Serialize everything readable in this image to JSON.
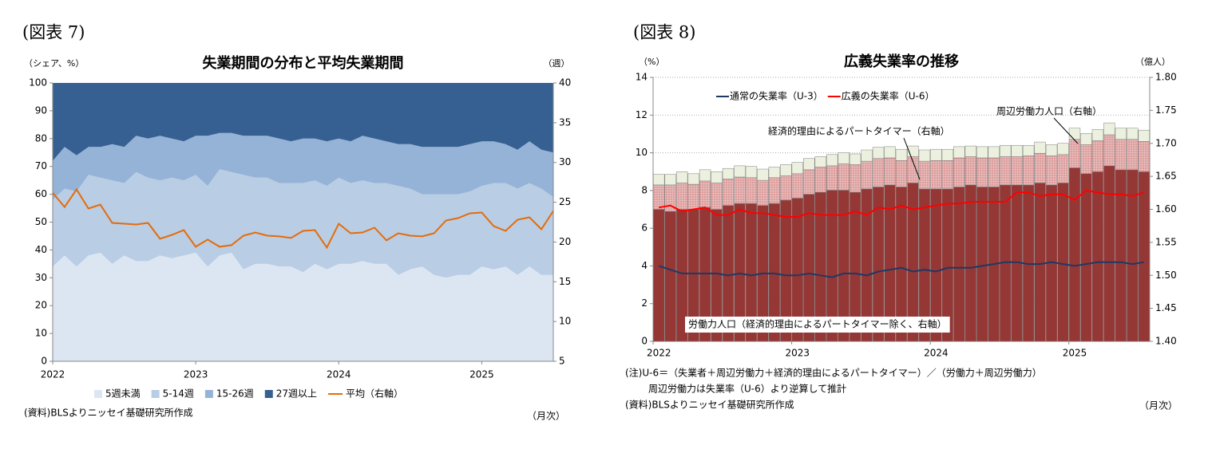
{
  "chart_data": [
    {
      "type": "area",
      "figure_label": "(図表 7)",
      "title": "失業期間の分布と平均失業期間",
      "y_label": "（シェア、%）",
      "y2_label": "（週）",
      "x_label": "（月次）",
      "source": "(資料)BLSよりニッセイ基礎研究所作成",
      "categories": [
        "2022",
        null,
        null,
        null,
        null,
        null,
        null,
        null,
        null,
        null,
        null,
        null,
        "2023",
        null,
        null,
        null,
        null,
        null,
        null,
        null,
        null,
        null,
        null,
        null,
        "2024",
        null,
        null,
        null,
        null,
        null,
        null,
        null,
        null,
        null,
        null,
        null,
        "2025",
        null,
        null,
        null,
        null,
        null,
        null
      ],
      "ylim": [
        0,
        100
      ],
      "yticks": [
        0,
        10,
        20,
        30,
        40,
        50,
        60,
        70,
        80,
        90,
        100
      ],
      "y2lim": [
        5,
        40
      ],
      "y2ticks": [
        5,
        10,
        15,
        20,
        25,
        30,
        35,
        40
      ],
      "series": [
        {
          "name": "5週未満",
          "color": "#dce6f2",
          "values": [
            34,
            38,
            34,
            38,
            39,
            35,
            38,
            36,
            36,
            38,
            37,
            38,
            39,
            34,
            38,
            39,
            33,
            35,
            35,
            34,
            34,
            32,
            35,
            33,
            35,
            35,
            36,
            35,
            35,
            31,
            33,
            34,
            31,
            30,
            31,
            31,
            34,
            33,
            34,
            31,
            34,
            31,
            31
          ]
        },
        {
          "name": "5-14週",
          "color": "#b9cde5",
          "values": [
            24,
            24,
            27,
            29,
            27,
            30,
            26,
            32,
            30,
            27,
            29,
            27,
            28,
            29,
            31,
            29,
            34,
            31,
            31,
            30,
            30,
            32,
            30,
            30,
            31,
            29,
            29,
            29,
            29,
            32,
            29,
            26,
            29,
            30,
            29,
            30,
            29,
            31,
            30,
            31,
            30,
            31,
            28
          ]
        },
        {
          "name": "15-26週",
          "color": "#95b3d7",
          "values": [
            14,
            15,
            13,
            10,
            11,
            13,
            13,
            13,
            14,
            16,
            14,
            14,
            14,
            18,
            13,
            14,
            14,
            15,
            15,
            16,
            15,
            16,
            15,
            16,
            14,
            15,
            16,
            16,
            15,
            15,
            16,
            17,
            17,
            17,
            17,
            17,
            16,
            15,
            14,
            14,
            15,
            14,
            16
          ]
        },
        {
          "name": "27週以上",
          "color": "#376092",
          "values": [
            28,
            23,
            26,
            23,
            23,
            22,
            23,
            19,
            20,
            19,
            20,
            21,
            19,
            19,
            18,
            18,
            19,
            19,
            19,
            20,
            21,
            20,
            20,
            21,
            20,
            21,
            19,
            20,
            21,
            22,
            22,
            23,
            23,
            23,
            23,
            22,
            21,
            21,
            22,
            24,
            21,
            24,
            25
          ]
        },
        {
          "name": "平均（右軸）",
          "type": "line",
          "axis": "y2",
          "color": "#e46c0a",
          "values": [
            26.2,
            24.4,
            26.6,
            24.2,
            24.7,
            22.4,
            22.3,
            22.2,
            22.4,
            20.4,
            20.9,
            21.5,
            19.4,
            20.3,
            19.4,
            19.6,
            20.8,
            21.2,
            20.8,
            20.7,
            20.5,
            21.4,
            21.5,
            19.3,
            22.3,
            21.1,
            21.2,
            21.8,
            20.2,
            21.1,
            20.8,
            20.7,
            21.1,
            22.7,
            23.0,
            23.6,
            23.7,
            22.0,
            21.4,
            22.8,
            23.1,
            21.6,
            23.9
          ]
        }
      ]
    },
    {
      "type": "bar",
      "figure_label": "(図表 8)",
      "title": "広義失業率の推移",
      "y_label": "（%）",
      "y2_label": "（億人）",
      "x_label": "（月次）",
      "notes": [
        "(注)U-6＝（失業者＋周辺労働力＋経済的理由によるパートタイマー）／（労働力＋周辺労働力）",
        "周辺労働力は失業率（U-6）より逆算して推計",
        "(資料)BLSよりニッセイ基礎研究所作成"
      ],
      "categories": [
        "2022",
        null,
        null,
        null,
        null,
        null,
        null,
        null,
        null,
        null,
        null,
        null,
        "2023",
        null,
        null,
        null,
        null,
        null,
        null,
        null,
        null,
        null,
        null,
        null,
        "2024",
        null,
        null,
        null,
        null,
        null,
        null,
        null,
        null,
        null,
        null,
        null,
        "2025",
        null,
        null,
        null,
        null,
        null,
        null
      ],
      "ylim": [
        0,
        14
      ],
      "yticks": [
        0,
        2,
        4,
        6,
        8,
        10,
        12,
        14
      ],
      "grid": true,
      "y2lim": [
        1.4,
        1.8
      ],
      "y2ticks": [
        {
          "value": 1.4,
          "label": "1.40"
        },
        1.45,
        {
          "value": 1.5,
          "label": "1.50"
        },
        1.55,
        {
          "value": 1.6,
          "label": "1.60"
        },
        1.65,
        {
          "value": 1.7,
          "label": "1.70"
        },
        1.75,
        {
          "value": 1.8,
          "label": "1.80"
        }
      ],
      "series": [
        {
          "name": "労働力人口（経済的理由によるパートタイマー除く、右軸）",
          "axis": "y2",
          "color": "#953735",
          "values": [
            1.6,
            1.597,
            1.6,
            1.6,
            1.603,
            1.6,
            1.606,
            1.609,
            1.609,
            1.606,
            1.609,
            1.614,
            1.617,
            1.623,
            1.626,
            1.629,
            1.629,
            1.626,
            1.631,
            1.634,
            1.637,
            1.634,
            1.64,
            1.631,
            1.631,
            1.631,
            1.634,
            1.637,
            1.634,
            1.634,
            1.637,
            1.637,
            1.637,
            1.64,
            1.637,
            1.64,
            1.663,
            1.654,
            1.657,
            1.666,
            1.66,
            1.66,
            1.657
          ]
        },
        {
          "name": "経済的理由によるパートタイマー（右軸）",
          "axis": "y2",
          "color": "#e6b9b8",
          "values": [
            0.037,
            0.04,
            0.04,
            0.038,
            0.04,
            0.04,
            0.04,
            0.04,
            0.039,
            0.038,
            0.039,
            0.037,
            0.037,
            0.037,
            0.038,
            0.037,
            0.04,
            0.042,
            0.042,
            0.043,
            0.041,
            0.04,
            0.04,
            0.042,
            0.043,
            0.043,
            0.044,
            0.043,
            0.044,
            0.044,
            0.043,
            0.043,
            0.044,
            0.045,
            0.044,
            0.043,
            0.043,
            0.044,
            0.047,
            0.047,
            0.046,
            0.046,
            0.046
          ]
        },
        {
          "name": "周辺労働力人口（右軸）",
          "axis": "y2",
          "color": "#ebf1de",
          "values": [
            0.016,
            0.016,
            0.017,
            0.016,
            0.017,
            0.017,
            0.016,
            0.017,
            0.017,
            0.017,
            0.016,
            0.017,
            0.017,
            0.017,
            0.016,
            0.017,
            0.017,
            0.016,
            0.017,
            0.017,
            0.017,
            0.017,
            0.016,
            0.017,
            0.017,
            0.017,
            0.017,
            0.016,
            0.017,
            0.017,
            0.017,
            0.017,
            0.016,
            0.017,
            0.017,
            0.017,
            0.017,
            0.017,
            0.017,
            0.018,
            0.017,
            0.017,
            0.017
          ]
        },
        {
          "name": "通常の失業率（U-3）",
          "type": "line",
          "color": "#1f3864",
          "values": [
            4.0,
            3.8,
            3.6,
            3.6,
            3.6,
            3.6,
            3.5,
            3.6,
            3.5,
            3.6,
            3.6,
            3.5,
            3.5,
            3.6,
            3.5,
            3.4,
            3.6,
            3.6,
            3.5,
            3.7,
            3.8,
            3.9,
            3.7,
            3.8,
            3.7,
            3.9,
            3.9,
            3.9,
            4.0,
            4.1,
            4.2,
            4.2,
            4.1,
            4.1,
            4.2,
            4.1,
            4.0,
            4.1,
            4.2,
            4.2,
            4.2,
            4.1,
            4.2
          ]
        },
        {
          "name": "広義の失業率（U-6）",
          "type": "line",
          "color": "#ff0000",
          "values": [
            7.1,
            7.2,
            6.9,
            7.0,
            7.1,
            6.7,
            6.7,
            7.0,
            6.8,
            6.8,
            6.7,
            6.6,
            6.6,
            6.8,
            6.7,
            6.7,
            6.7,
            6.9,
            6.7,
            7.1,
            7.0,
            7.2,
            7.0,
            7.1,
            7.2,
            7.3,
            7.3,
            7.4,
            7.4,
            7.4,
            7.4,
            7.9,
            7.9,
            7.7,
            7.8,
            7.8,
            7.5,
            8.0,
            7.9,
            7.8,
            7.8,
            7.7,
            7.9
          ]
        }
      ]
    }
  ]
}
